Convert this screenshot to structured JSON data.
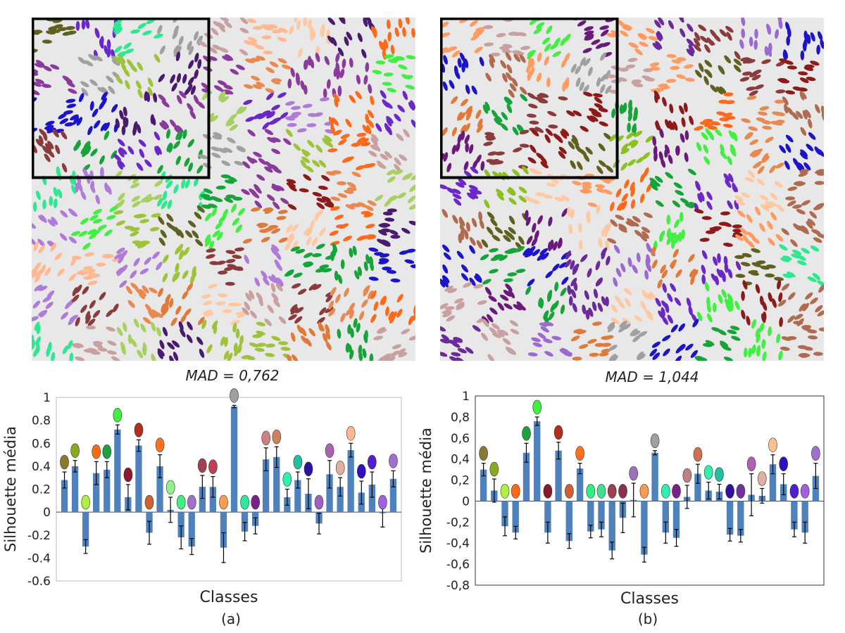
{
  "panels": [
    {
      "id": "a",
      "mad_label": "MAD = 0,762",
      "sub_label": "(a)",
      "leaf_colors": [
        "#4a1a6e",
        "#ff6a1a",
        "#16a33a",
        "#2ee890",
        "#1b14c8",
        "#9ec23a",
        "#e07a3a",
        "#8a3c3c",
        "#6a28c8",
        "#ffc8a0",
        "#a8d060",
        "#8c1a1a",
        "#c8a0a0",
        "#b07ad8",
        "#8a3a9a",
        "#e88a50",
        "#ffb890",
        "#606020",
        "#40f040",
        "#a0a0a0"
      ]
    },
    {
      "id": "b",
      "mad_label": "MAD = 1,044",
      "sub_label": "(b)",
      "leaf_colors": [
        "#6a1a7a",
        "#ff6a1a",
        "#16a33a",
        "#2ee890",
        "#1b14c8",
        "#8ac020",
        "#e07a3a",
        "#8a3c3c",
        "#6a28c8",
        "#ffc8a0",
        "#b06a50",
        "#8c1a1a",
        "#c8a0a0",
        "#9a6ad0",
        "#6a2a9a",
        "#e88a50",
        "#ff9a60",
        "#606020",
        "#40f040",
        "#a0a0a0"
      ]
    }
  ],
  "chart_data": [
    {
      "type": "bar",
      "title": "",
      "xlabel": "Classes",
      "ylabel": "Silhouette média",
      "ylim": [
        -0.6,
        1
      ],
      "yticks": [
        "1",
        "0.8",
        "0.6",
        "0.4",
        "0.2",
        "0",
        "-0.2",
        "-0.4",
        "-0.6"
      ],
      "bar_color": "#4f81bd",
      "values": [
        0.28,
        0.4,
        -0.3,
        0.34,
        0.37,
        0.72,
        0.13,
        0.58,
        -0.18,
        0.4,
        0.02,
        -0.22,
        -0.3,
        0.22,
        0.22,
        -0.31,
        0.92,
        -0.17,
        -0.12,
        0.46,
        0.48,
        0.13,
        0.28,
        0.16,
        -0.1,
        0.33,
        0.22,
        0.54,
        0.17,
        0.24,
        -0.01,
        0.29
      ],
      "errors": [
        0.07,
        0.05,
        0.06,
        0.1,
        0.07,
        0.04,
        0.11,
        0.05,
        0.1,
        0.1,
        0.11,
        0.1,
        0.07,
        0.1,
        0.09,
        0.13,
        0.01,
        0.08,
        0.07,
        0.1,
        0.09,
        0.07,
        0.07,
        0.13,
        0.09,
        0.12,
        0.08,
        0.06,
        0.1,
        0.11,
        0.12,
        0.07
      ],
      "icon_colors": [
        "#8a7a30",
        "#8aa820",
        "#b0f040",
        "#ff6a10",
        "#20a040",
        "#40f040",
        "#8a1a2a",
        "#b03020",
        "#d06030",
        "#ff7020",
        "#90f090",
        "#40f080",
        "#a070d0",
        "#a04050",
        "#c04050",
        "#ff9a50",
        "#a0a0a0",
        "#2ee8a0",
        "#7a208a",
        "#d08080",
        "#d08060",
        "#30f0b0",
        "#20c0a0",
        "#3010a0",
        "#a060c0",
        "#b060b0",
        "#e0b0a0",
        "#ffb890",
        "#3010c0",
        "#5020d0",
        "#a060e0",
        "#a070d0"
      ]
    },
    {
      "type": "bar",
      "title": "",
      "xlabel": "Classes",
      "ylabel": "Silhouette média",
      "ylim": [
        -0.8,
        1
      ],
      "yticks": [
        "1",
        "0,8",
        "0,6",
        "0,4",
        "0,2",
        "0",
        "-0,2",
        "-0,4",
        "-0,6",
        "-0,8"
      ],
      "bar_color": "#4f81bd",
      "values": [
        0.3,
        0.1,
        -0.24,
        -0.3,
        0.46,
        0.76,
        -0.3,
        0.48,
        -0.38,
        0.31,
        -0.29,
        -0.27,
        -0.47,
        -0.16,
        0.01,
        -0.51,
        0.46,
        -0.3,
        -0.35,
        0.04,
        0.26,
        0.1,
        0.09,
        -0.32,
        -0.33,
        0.06,
        0.05,
        0.35,
        0.16,
        -0.27,
        -0.3,
        0.24
      ],
      "errors": [
        0.06,
        0.11,
        0.09,
        0.06,
        0.09,
        0.04,
        0.1,
        0.08,
        0.07,
        0.05,
        0.06,
        0.07,
        0.08,
        0.14,
        0.16,
        0.07,
        0.02,
        0.1,
        0.08,
        0.11,
        0.09,
        0.08,
        0.07,
        0.06,
        0.06,
        0.2,
        0.07,
        0.09,
        0.1,
        0.07,
        0.1,
        0.12
      ],
      "icon_colors": [
        "#8a7a30",
        "#8aa820",
        "#b0f040",
        "#ff6a10",
        "#20a040",
        "#40f040",
        "#8a1a2a",
        "#b03020",
        "#d06030",
        "#ff7020",
        "#30f080",
        "#40e090",
        "#a04050",
        "#8a3050",
        "#a070c0",
        "#ff9a50",
        "#a0a0a0",
        "#30f0b0",
        "#7a208a",
        "#c08080",
        "#d07050",
        "#30f0b0",
        "#20c0a0",
        "#3010a0",
        "#7030a0",
        "#b060b0",
        "#e0b0a0",
        "#ffc090",
        "#3010c0",
        "#5020d0",
        "#a060e0",
        "#a070d0"
      ]
    }
  ]
}
